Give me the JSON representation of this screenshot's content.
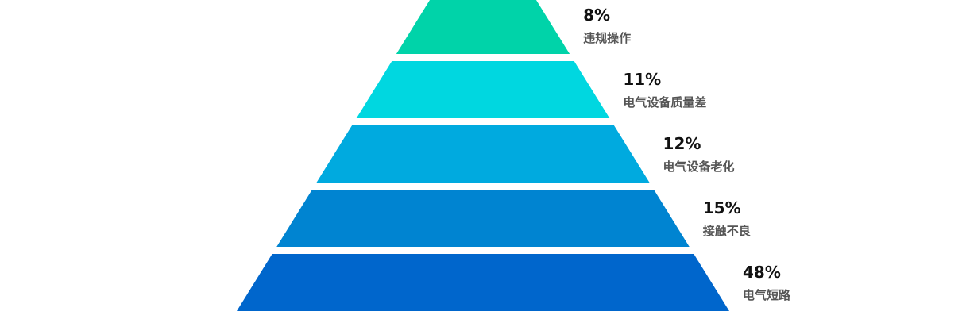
{
  "chart_data": {
    "type": "pyramid",
    "categories": [
      "违规操作",
      "电气设备质量差",
      "电气设备老化",
      "接触不良",
      "电气短路"
    ],
    "values": [
      8,
      11,
      12,
      15,
      48
    ],
    "value_labels": [
      "8%",
      "11%",
      "12%",
      "15%",
      "48%"
    ],
    "colors": [
      "#00d3a9",
      "#00d7e0",
      "#00aadf",
      "#0084d1",
      "#0066cc"
    ]
  }
}
